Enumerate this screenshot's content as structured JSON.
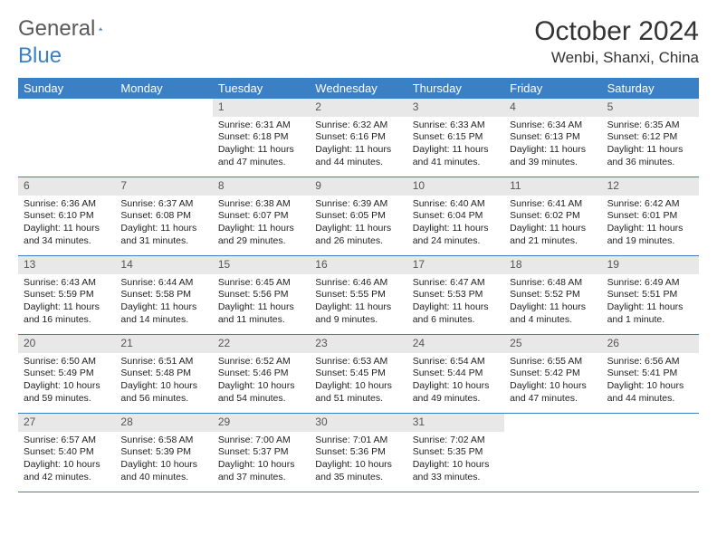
{
  "logo": {
    "text1": "General",
    "text2": "Blue"
  },
  "title": "October 2024",
  "location": "Wenbi, Shanxi, China",
  "colors": {
    "header_bg": "#3b7fc4",
    "header_text": "#ffffff",
    "daynum_bg": "#e8e8e8",
    "daynum_text": "#555555",
    "border": "#3b7fc4",
    "logo_gray": "#5a5a5a",
    "logo_blue": "#3b7fc4"
  },
  "dayNames": [
    "Sunday",
    "Monday",
    "Tuesday",
    "Wednesday",
    "Thursday",
    "Friday",
    "Saturday"
  ],
  "weeks": [
    [
      {
        "empty": true
      },
      {
        "empty": true
      },
      {
        "n": "1",
        "sr": "Sunrise: 6:31 AM",
        "ss": "Sunset: 6:18 PM",
        "dl1": "Daylight: 11 hours",
        "dl2": "and 47 minutes."
      },
      {
        "n": "2",
        "sr": "Sunrise: 6:32 AM",
        "ss": "Sunset: 6:16 PM",
        "dl1": "Daylight: 11 hours",
        "dl2": "and 44 minutes."
      },
      {
        "n": "3",
        "sr": "Sunrise: 6:33 AM",
        "ss": "Sunset: 6:15 PM",
        "dl1": "Daylight: 11 hours",
        "dl2": "and 41 minutes."
      },
      {
        "n": "4",
        "sr": "Sunrise: 6:34 AM",
        "ss": "Sunset: 6:13 PM",
        "dl1": "Daylight: 11 hours",
        "dl2": "and 39 minutes."
      },
      {
        "n": "5",
        "sr": "Sunrise: 6:35 AM",
        "ss": "Sunset: 6:12 PM",
        "dl1": "Daylight: 11 hours",
        "dl2": "and 36 minutes."
      }
    ],
    [
      {
        "n": "6",
        "sr": "Sunrise: 6:36 AM",
        "ss": "Sunset: 6:10 PM",
        "dl1": "Daylight: 11 hours",
        "dl2": "and 34 minutes."
      },
      {
        "n": "7",
        "sr": "Sunrise: 6:37 AM",
        "ss": "Sunset: 6:08 PM",
        "dl1": "Daylight: 11 hours",
        "dl2": "and 31 minutes."
      },
      {
        "n": "8",
        "sr": "Sunrise: 6:38 AM",
        "ss": "Sunset: 6:07 PM",
        "dl1": "Daylight: 11 hours",
        "dl2": "and 29 minutes."
      },
      {
        "n": "9",
        "sr": "Sunrise: 6:39 AM",
        "ss": "Sunset: 6:05 PM",
        "dl1": "Daylight: 11 hours",
        "dl2": "and 26 minutes."
      },
      {
        "n": "10",
        "sr": "Sunrise: 6:40 AM",
        "ss": "Sunset: 6:04 PM",
        "dl1": "Daylight: 11 hours",
        "dl2": "and 24 minutes."
      },
      {
        "n": "11",
        "sr": "Sunrise: 6:41 AM",
        "ss": "Sunset: 6:02 PM",
        "dl1": "Daylight: 11 hours",
        "dl2": "and 21 minutes."
      },
      {
        "n": "12",
        "sr": "Sunrise: 6:42 AM",
        "ss": "Sunset: 6:01 PM",
        "dl1": "Daylight: 11 hours",
        "dl2": "and 19 minutes."
      }
    ],
    [
      {
        "n": "13",
        "sr": "Sunrise: 6:43 AM",
        "ss": "Sunset: 5:59 PM",
        "dl1": "Daylight: 11 hours",
        "dl2": "and 16 minutes."
      },
      {
        "n": "14",
        "sr": "Sunrise: 6:44 AM",
        "ss": "Sunset: 5:58 PM",
        "dl1": "Daylight: 11 hours",
        "dl2": "and 14 minutes."
      },
      {
        "n": "15",
        "sr": "Sunrise: 6:45 AM",
        "ss": "Sunset: 5:56 PM",
        "dl1": "Daylight: 11 hours",
        "dl2": "and 11 minutes."
      },
      {
        "n": "16",
        "sr": "Sunrise: 6:46 AM",
        "ss": "Sunset: 5:55 PM",
        "dl1": "Daylight: 11 hours",
        "dl2": "and 9 minutes."
      },
      {
        "n": "17",
        "sr": "Sunrise: 6:47 AM",
        "ss": "Sunset: 5:53 PM",
        "dl1": "Daylight: 11 hours",
        "dl2": "and 6 minutes."
      },
      {
        "n": "18",
        "sr": "Sunrise: 6:48 AM",
        "ss": "Sunset: 5:52 PM",
        "dl1": "Daylight: 11 hours",
        "dl2": "and 4 minutes."
      },
      {
        "n": "19",
        "sr": "Sunrise: 6:49 AM",
        "ss": "Sunset: 5:51 PM",
        "dl1": "Daylight: 11 hours",
        "dl2": "and 1 minute."
      }
    ],
    [
      {
        "n": "20",
        "sr": "Sunrise: 6:50 AM",
        "ss": "Sunset: 5:49 PM",
        "dl1": "Daylight: 10 hours",
        "dl2": "and 59 minutes."
      },
      {
        "n": "21",
        "sr": "Sunrise: 6:51 AM",
        "ss": "Sunset: 5:48 PM",
        "dl1": "Daylight: 10 hours",
        "dl2": "and 56 minutes."
      },
      {
        "n": "22",
        "sr": "Sunrise: 6:52 AM",
        "ss": "Sunset: 5:46 PM",
        "dl1": "Daylight: 10 hours",
        "dl2": "and 54 minutes."
      },
      {
        "n": "23",
        "sr": "Sunrise: 6:53 AM",
        "ss": "Sunset: 5:45 PM",
        "dl1": "Daylight: 10 hours",
        "dl2": "and 51 minutes."
      },
      {
        "n": "24",
        "sr": "Sunrise: 6:54 AM",
        "ss": "Sunset: 5:44 PM",
        "dl1": "Daylight: 10 hours",
        "dl2": "and 49 minutes."
      },
      {
        "n": "25",
        "sr": "Sunrise: 6:55 AM",
        "ss": "Sunset: 5:42 PM",
        "dl1": "Daylight: 10 hours",
        "dl2": "and 47 minutes."
      },
      {
        "n": "26",
        "sr": "Sunrise: 6:56 AM",
        "ss": "Sunset: 5:41 PM",
        "dl1": "Daylight: 10 hours",
        "dl2": "and 44 minutes."
      }
    ],
    [
      {
        "n": "27",
        "sr": "Sunrise: 6:57 AM",
        "ss": "Sunset: 5:40 PM",
        "dl1": "Daylight: 10 hours",
        "dl2": "and 42 minutes."
      },
      {
        "n": "28",
        "sr": "Sunrise: 6:58 AM",
        "ss": "Sunset: 5:39 PM",
        "dl1": "Daylight: 10 hours",
        "dl2": "and 40 minutes."
      },
      {
        "n": "29",
        "sr": "Sunrise: 7:00 AM",
        "ss": "Sunset: 5:37 PM",
        "dl1": "Daylight: 10 hours",
        "dl2": "and 37 minutes."
      },
      {
        "n": "30",
        "sr": "Sunrise: 7:01 AM",
        "ss": "Sunset: 5:36 PM",
        "dl1": "Daylight: 10 hours",
        "dl2": "and 35 minutes."
      },
      {
        "n": "31",
        "sr": "Sunrise: 7:02 AM",
        "ss": "Sunset: 5:35 PM",
        "dl1": "Daylight: 10 hours",
        "dl2": "and 33 minutes."
      },
      {
        "empty": true
      },
      {
        "empty": true
      }
    ]
  ]
}
